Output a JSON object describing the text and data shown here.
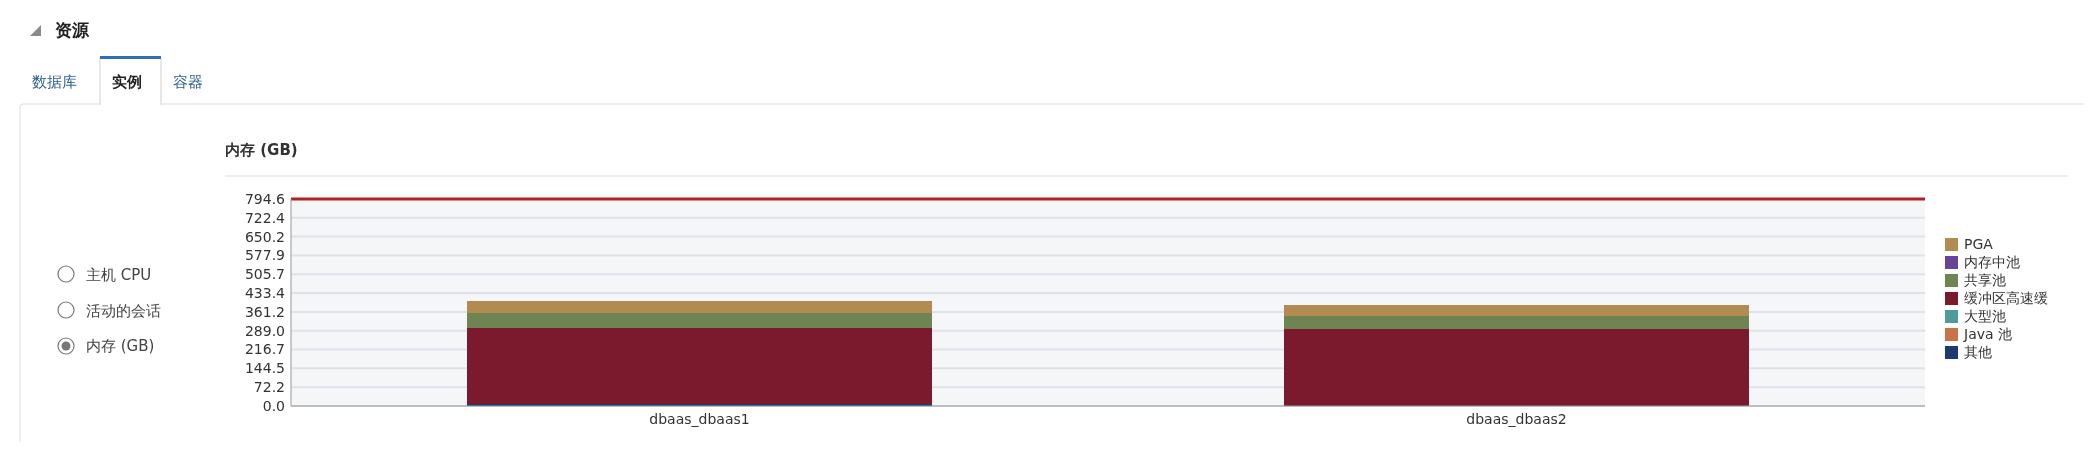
{
  "chart_data": {
    "type": "bar",
    "title": "内存 (GB)",
    "stacked": true,
    "categories": [
      "dbaas_dbaas1",
      "dbaas_dbaas2"
    ],
    "series": [
      {
        "name": "其他",
        "color": "#1f3a6e",
        "values": [
          8,
          null
        ]
      },
      {
        "name": "Java 池",
        "color": "#c8734a",
        "values": [
          0,
          0
        ]
      },
      {
        "name": "大型池",
        "color": "#4f9a9a",
        "values": [
          0,
          0
        ]
      },
      {
        "name": "缓冲区高速缓",
        "color": "#7b1a2c",
        "values": [
          291,
          295
        ]
      },
      {
        "name": "共享池",
        "color": "#6e8453",
        "values": [
          57,
          51
        ]
      },
      {
        "name": "内存中池",
        "color": "#65449a",
        "values": [
          0,
          0
        ]
      },
      {
        "name": "PGA",
        "color": "#b38b50",
        "values": [
          48,
          41
        ]
      }
    ],
    "ylim": [
      0,
      794.6
    ],
    "yticks": [
      {
        "value": 0,
        "label": "0.0"
      },
      72.2,
      144.5,
      216.7,
      {
        "value": 289,
        "label": "289.0"
      },
      361.2,
      433.4,
      505.7,
      577.9,
      650.2,
      722.4,
      794.6
    ],
    "grid": "y",
    "legend": "right",
    "ref_lines": [
      {
        "axis": "y",
        "value": 794.6,
        "color": "#b22222"
      }
    ],
    "annotations": [
      "资源",
      "数据库",
      "实例",
      "容器",
      "主机 CPU",
      "活动的会话",
      "内存 (GB)"
    ]
  }
}
